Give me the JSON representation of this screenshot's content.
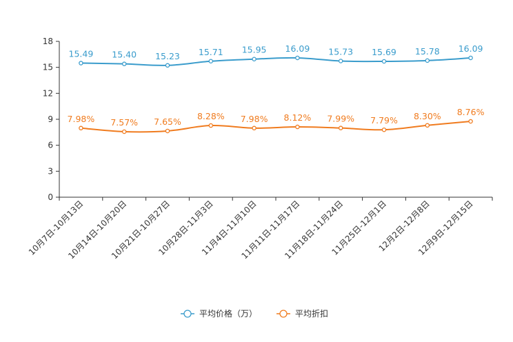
{
  "chart_data": {
    "type": "line",
    "title": "",
    "xlabel": "",
    "ylabel": "",
    "ylim": [
      0,
      18
    ],
    "yticks": [
      0,
      3,
      6,
      9,
      12,
      15,
      18
    ],
    "grid": false,
    "legend_position": "bottom-center",
    "categories": [
      "10月7日-10月13日",
      "10月14日-10月20日",
      "10月21日-10月27日",
      "10月28日-11月3日",
      "11月4日-11月10日",
      "11月11日-11月17日",
      "11月18日-11月24日",
      "11月25日-12月1日",
      "12月2日-12月8日",
      "12月9日-12月15日"
    ],
    "series": [
      {
        "name": "平均价格（万）",
        "color": "#3a9ccc",
        "values": [
          15.49,
          15.4,
          15.23,
          15.71,
          15.95,
          16.09,
          15.73,
          15.69,
          15.78,
          16.09
        ],
        "labels": [
          "15.49",
          "15.40",
          "15.23",
          "15.71",
          "15.95",
          "16.09",
          "15.73",
          "15.69",
          "15.78",
          "16.09"
        ]
      },
      {
        "name": "平均折扣",
        "color": "#f07b1e",
        "values": [
          7.98,
          7.57,
          7.65,
          8.28,
          7.98,
          8.12,
          7.99,
          7.79,
          8.3,
          8.76
        ],
        "labels": [
          "7.98%",
          "7.57%",
          "7.65%",
          "8.28%",
          "7.98%",
          "8.12%",
          "7.99%",
          "7.79%",
          "8.30%",
          "8.76%"
        ]
      }
    ]
  }
}
